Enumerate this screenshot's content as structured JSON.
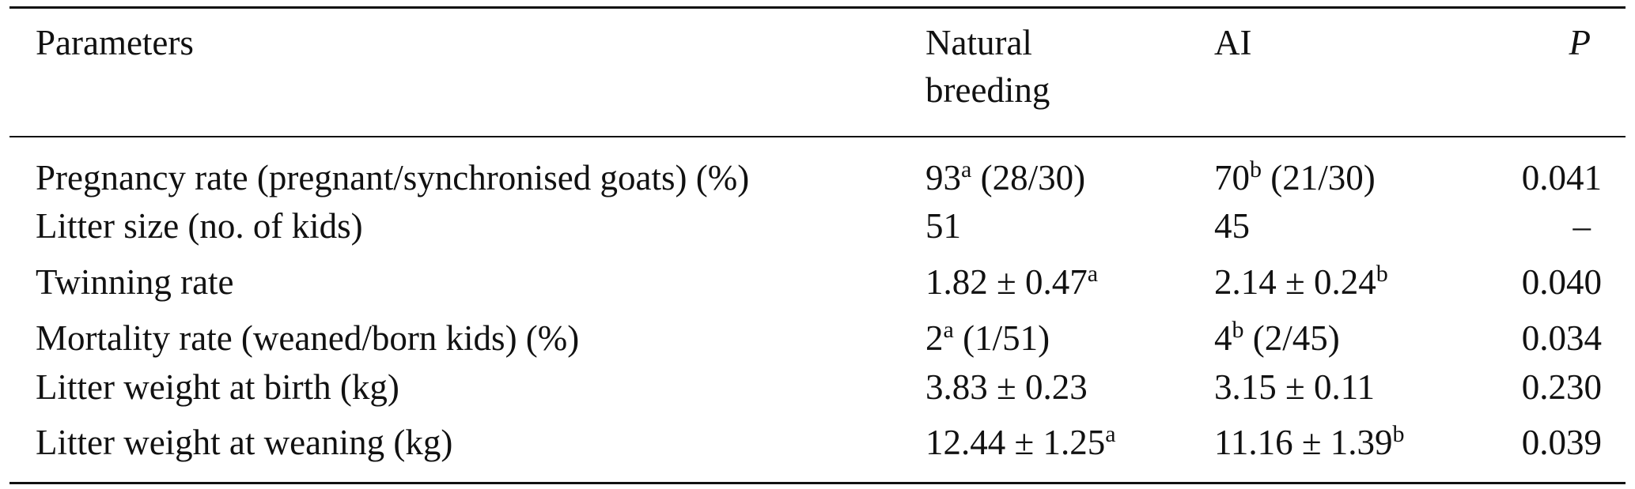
{
  "table": {
    "headers": {
      "parameters": "Parameters",
      "natural_breeding_line1": "Natural",
      "natural_breeding_line2": "breeding",
      "ai": "AI",
      "p": "P"
    },
    "rows": [
      {
        "parameter": "Pregnancy rate (pregnant/synchronised goats) (%)",
        "natural_value": "93",
        "natural_sup": "a",
        "natural_rest": " (28/30)",
        "ai_value": "70",
        "ai_sup": "b",
        "ai_rest": " (21/30)",
        "p": "0.041"
      },
      {
        "parameter": "Litter size (no. of kids)",
        "natural_value": "51",
        "natural_sup": "",
        "natural_rest": "",
        "ai_value": "45",
        "ai_sup": "",
        "ai_rest": "",
        "p": "–"
      },
      {
        "parameter": "Twinning rate",
        "natural_value": "1.82 ± 0.47",
        "natural_sup": "a",
        "natural_rest": "",
        "ai_value": "2.14 ± 0.24",
        "ai_sup": "b",
        "ai_rest": "",
        "p": "0.040"
      },
      {
        "parameter": "Mortality rate (weaned/born kids) (%)",
        "natural_value": "2",
        "natural_sup": "a",
        "natural_rest": " (1/51)",
        "ai_value": "4",
        "ai_sup": "b",
        "ai_rest": " (2/45)",
        "p": "0.034"
      },
      {
        "parameter": "Litter weight at birth (kg)",
        "natural_value": "3.83 ± 0.23",
        "natural_sup": "",
        "natural_rest": "",
        "ai_value": "3.15 ± 0.11",
        "ai_sup": "",
        "ai_rest": "",
        "p": "0.230"
      },
      {
        "parameter": "Litter weight at weaning (kg)",
        "natural_value": "12.44 ± 1.25",
        "natural_sup": "a",
        "natural_rest": "",
        "ai_value": "11.16 ± 1.39",
        "ai_sup": "b",
        "ai_rest": "",
        "p": "0.039"
      }
    ]
  }
}
